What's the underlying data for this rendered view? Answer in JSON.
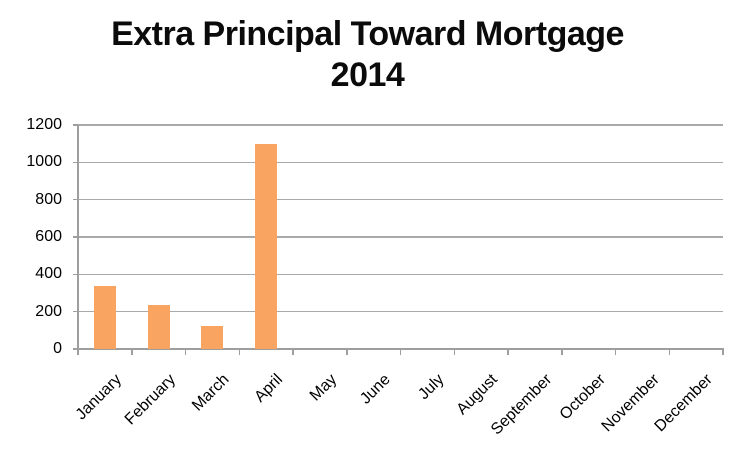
{
  "chart_data": {
    "type": "bar",
    "title": "Extra Principal Toward Mortgage",
    "subtitle": "2014",
    "categories": [
      "January",
      "February",
      "March",
      "April",
      "May",
      "June",
      "July",
      "August",
      "September",
      "October",
      "November",
      "December"
    ],
    "values": [
      335,
      235,
      125,
      1100,
      0,
      0,
      0,
      0,
      0,
      0,
      0,
      0
    ],
    "xlabel": "",
    "ylabel": "",
    "ylim": [
      0,
      1200
    ],
    "yticks": [
      0,
      200,
      400,
      600,
      800,
      1000,
      1200
    ],
    "grid": "horizontal",
    "legend": "none",
    "x_label_rotation_deg": -45,
    "colors": {
      "bar_fill": "#FAA462",
      "gridline": "#A9A9A9",
      "axis": "#9E9E9E",
      "text": "#000000",
      "background": "#FFFFFF"
    }
  }
}
